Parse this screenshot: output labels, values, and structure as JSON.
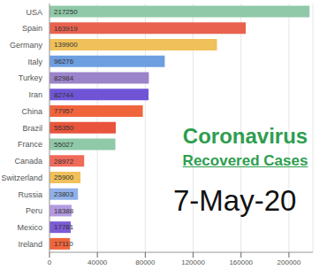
{
  "chart_data": {
    "type": "bar",
    "orientation": "horizontal",
    "title": "Coronavirus",
    "subtitle": "Recovered Cases",
    "annotations": [
      "7-May-20"
    ],
    "categories": [
      "USA",
      "Spain",
      "Germany",
      "Italy",
      "Turkey",
      "Iran",
      "China",
      "Brazil",
      "France",
      "Canada",
      "Switzerland",
      "Russia",
      "Peru",
      "Mexico",
      "Ireland"
    ],
    "values": [
      217250,
      163919,
      139900,
      96276,
      82984,
      82744,
      77957,
      55350,
      55027,
      28972,
      25900,
      23803,
      18388,
      17781,
      17110
    ],
    "colors": [
      "#8fc9a8",
      "#e8624f",
      "#f0c05a",
      "#6d9ee0",
      "#9b84c9",
      "#6f55d6",
      "#f0643c",
      "#e8553c",
      "#8fc9a8",
      "#f06a5a",
      "#f0c05a",
      "#8fb0e8",
      "#b49ae0",
      "#7c5bd6",
      "#f0653c"
    ],
    "xlim": [
      0,
      220000
    ],
    "xticks": [
      0,
      40000,
      80000,
      120000,
      160000,
      200000
    ],
    "grid": true,
    "data_labels": true
  }
}
